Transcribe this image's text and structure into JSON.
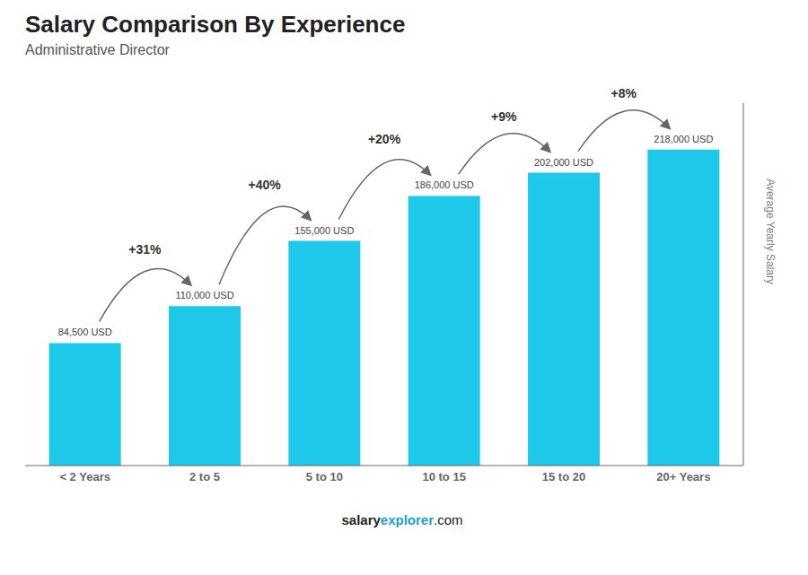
{
  "chart_data": {
    "type": "bar",
    "title": "Salary Comparison By Experience",
    "subtitle": "Administrative Director",
    "ylabel": "Average Yearly Salary",
    "footer": [
      "salary",
      "explorer",
      ".com"
    ],
    "categories": [
      "< 2 Years",
      "2 to 5",
      "5 to 10",
      "10 to 15",
      "15 to 20",
      "20+ Years"
    ],
    "values": [
      84500,
      110000,
      155000,
      186000,
      202000,
      218000
    ],
    "value_labels": [
      "84,500 USD",
      "110,000 USD",
      "155,000 USD",
      "186,000 USD",
      "202,000 USD",
      "218,000 USD"
    ],
    "data_labels": true,
    "annotations": [
      "+31%",
      "+40%",
      "+20%",
      "+9%",
      "+8%"
    ],
    "color": "#1EC8E8",
    "ylim": [
      0,
      250000
    ],
    "tick_labels": "x",
    "grid": false
  }
}
